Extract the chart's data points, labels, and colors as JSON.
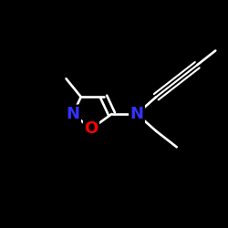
{
  "background_color": "#000000",
  "bond_color": "#ffffff",
  "atom_colors": {
    "N": "#3333ff",
    "O": "#ff0000",
    "C": "#ffffff"
  },
  "figsize": [
    2.5,
    2.5
  ],
  "dpi": 100,
  "ring": {
    "rNx": 0.32,
    "rNy": 0.5,
    "rOx": 0.4,
    "rOy": 0.435,
    "rC5x": 0.49,
    "rC5y": 0.5,
    "rC4x": 0.455,
    "rC4y": 0.575,
    "rC3x": 0.355,
    "rC3y": 0.575
  },
  "amino_N": [
    0.6,
    0.5
  ],
  "methyl": [
    0.29,
    0.655
  ],
  "propynyl": {
    "p1x": 0.685,
    "p1y": 0.575,
    "p2x": 0.775,
    "p2y": 0.645,
    "p3x": 0.865,
    "p3y": 0.715,
    "p4x": 0.945,
    "p4y": 0.778
  },
  "ethyl": {
    "e1x": 0.685,
    "e1y": 0.425,
    "e2x": 0.775,
    "e2y": 0.355
  },
  "lw": 1.9,
  "lw_triple": 1.5,
  "fontsize": 13
}
